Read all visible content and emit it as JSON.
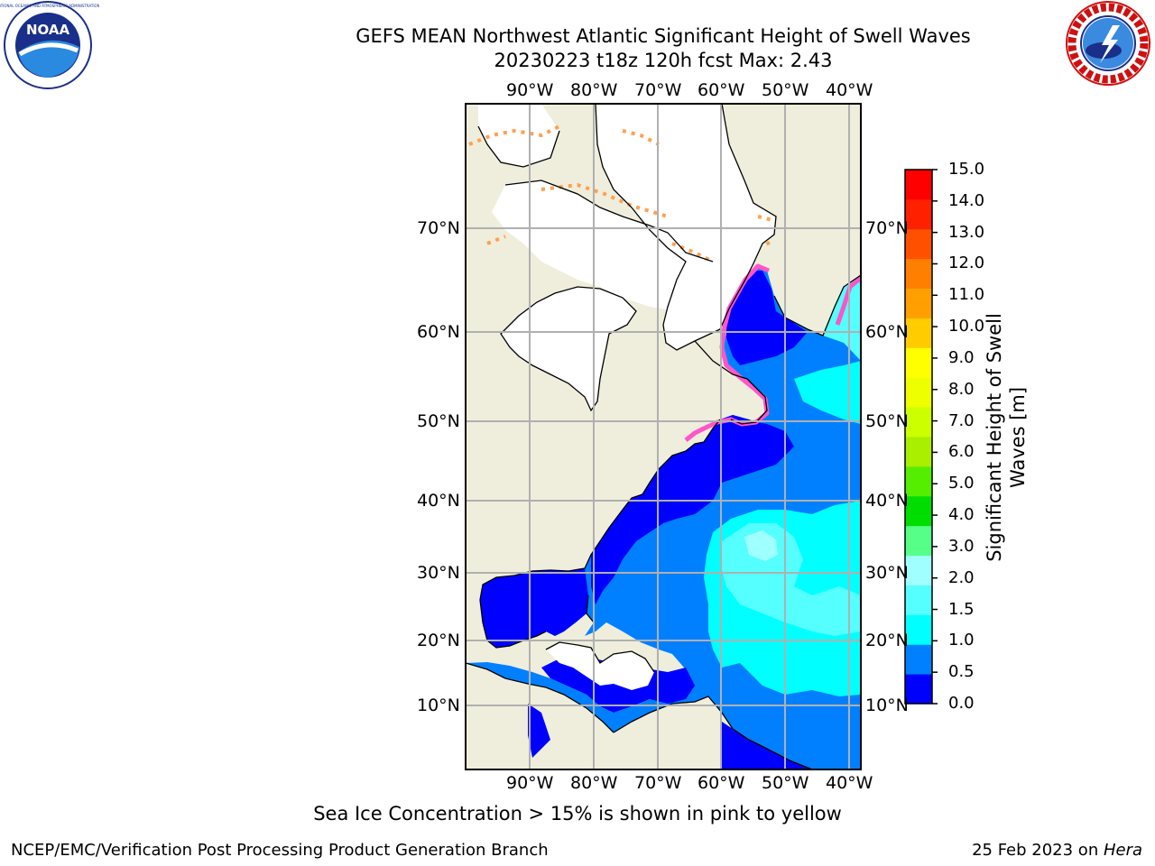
{
  "title": {
    "line1": "GEFS MEAN Northwest Atlantic Significant Height of Swell Waves",
    "line2": "20230223 t18z 120h fcst   Max: 2.43"
  },
  "map": {
    "lon_labels": [
      "90°W",
      "80°W",
      "70°W",
      "60°W",
      "50°W",
      "40°W"
    ],
    "lat_labels": [
      "70°N",
      "60°N",
      "50°N",
      "40°N",
      "30°N",
      "20°N",
      "10°N"
    ],
    "colors": {
      "land": "#efeedc",
      "ice_pink": "#ff55c8",
      "ice_yellow": "#ffe640",
      "ice_orange": "#ffa050",
      "grid": "#b0b0b0"
    }
  },
  "colorbar": {
    "label_line1": "Significant Height of Swell",
    "label_line2": "Waves [m]",
    "ticks": [
      "0.0",
      "0.5",
      "1.0",
      "1.5",
      "2.0",
      "3.0",
      "4.0",
      "5.0",
      "6.0",
      "7.0",
      "8.0",
      "9.0",
      "10.0",
      "11.0",
      "12.0",
      "13.0",
      "14.0",
      "15.0"
    ],
    "colors": [
      "#0000ff",
      "#0080ff",
      "#00ffff",
      "#55ffff",
      "#a0ffff",
      "#55ff88",
      "#00dd00",
      "#55ee00",
      "#aaee00",
      "#ccff00",
      "#eeff00",
      "#ffff00",
      "#ffcc00",
      "#ffa000",
      "#ff8000",
      "#ff5000",
      "#ff2000",
      "#ff0000"
    ]
  },
  "ocean_colors": {
    "deep": "#0000ff",
    "mid": "#0080ff",
    "cyan": "#00ffff",
    "light": "#55ffff",
    "pale": "#a0ffff"
  },
  "footnote": "Sea Ice Concentration > 15% is shown in pink to yellow",
  "footer": {
    "left": "NCEP/EMC/Verification Post Processing Product Generation Branch",
    "right_prefix": "25 Feb 2023 on ",
    "right_host": "Hera"
  }
}
